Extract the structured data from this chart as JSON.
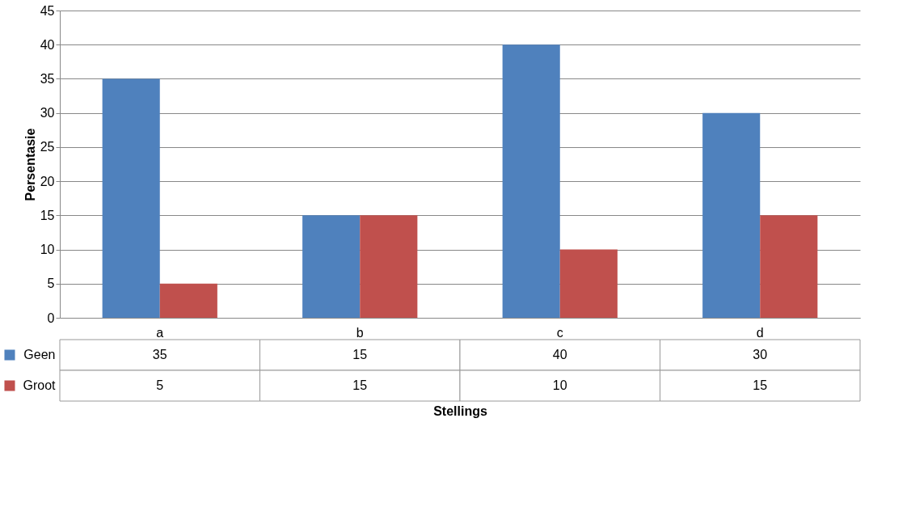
{
  "chart_data": {
    "type": "bar",
    "xlabel": "Stellings",
    "ylabel": "Persentasie",
    "categories": [
      "a",
      "b",
      "c",
      "d"
    ],
    "series": [
      {
        "name": "Geen",
        "color": "#4f81bd",
        "values": [
          35,
          15,
          40,
          30
        ]
      },
      {
        "name": "Groot",
        "color": "#c0504d",
        "values": [
          5,
          15,
          10,
          15
        ]
      }
    ],
    "ylim": [
      0,
      45
    ],
    "yticks": [
      0,
      5,
      10,
      15,
      20,
      25,
      30,
      35,
      40,
      45
    ],
    "grid": "y",
    "legend": "bottom left",
    "data_labels": true
  }
}
